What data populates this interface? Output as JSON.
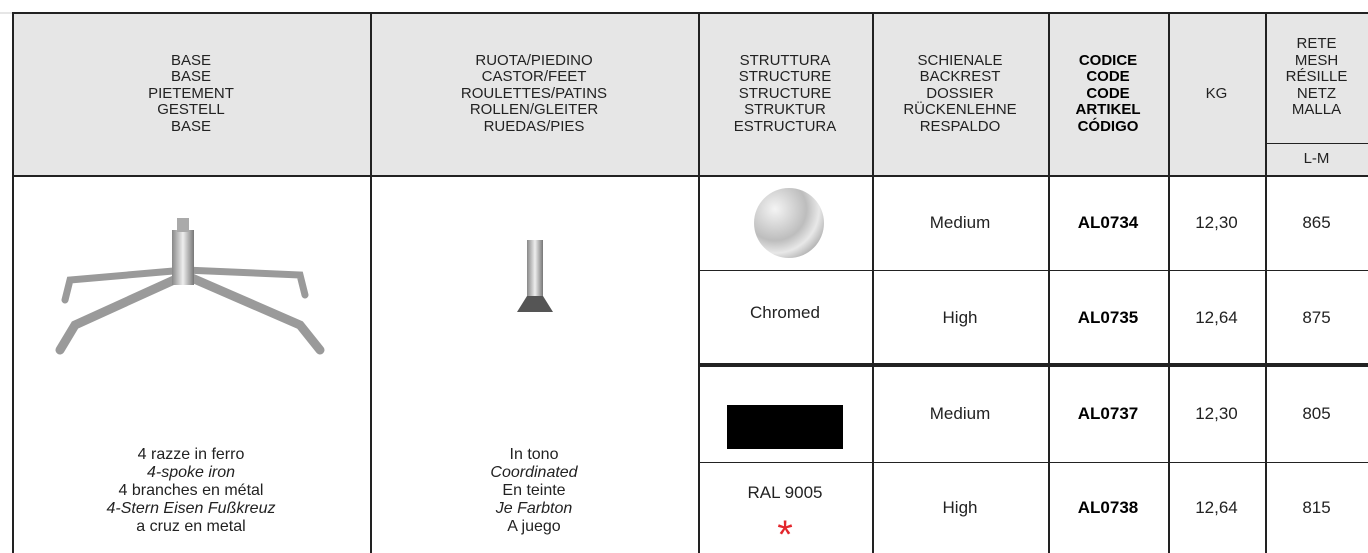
{
  "header": {
    "columns": [
      {
        "lines": [
          "BASE",
          "BASE",
          "PIETEMENT",
          "GESTELL",
          "BASE"
        ]
      },
      {
        "lines": [
          "RUOTA/PIEDINO",
          "CASTOR/FEET",
          "ROULETTES/PATINS",
          "ROLLEN/GLEITER",
          "RUEDAS/PIES"
        ]
      },
      {
        "lines": [
          "STRUTTURA",
          "STRUCTURE",
          "STRUCTURE",
          "STRUKTUR",
          "ESTRUCTURA"
        ]
      },
      {
        "lines": [
          "SCHIENALE",
          "BACKREST",
          "DOSSIER",
          "RÜCKENLEHNE",
          "RESPALDO"
        ]
      },
      {
        "lines": [
          "CODICE",
          "CODE",
          "CODE",
          "ARTIKEL",
          "CÓDIGO"
        ]
      },
      {
        "lines": [
          "KG"
        ]
      },
      {
        "lines": [
          "RETE",
          "MESH",
          "RÉSILLE",
          "NETZ",
          "MALLA"
        ]
      }
    ],
    "mesh_sub": "L-M"
  },
  "base_description": {
    "lines": [
      "4 razze in ferro",
      "4-spoke iron",
      "4 branches en métal",
      "4-Stern Eisen Fußkreuz",
      "a cruz en metal"
    ]
  },
  "castor_description": {
    "lines": [
      "In tono",
      "Coordinated",
      "En teinte",
      "Je Farbton",
      "A juego"
    ]
  },
  "finishes": [
    {
      "name": "Chromed",
      "rows": [
        {
          "backrest": "Medium",
          "code": "AL0734",
          "kg": "12,30",
          "mesh": "865"
        },
        {
          "backrest": "High",
          "code": "AL0735",
          "kg": "12,64",
          "mesh": "875"
        }
      ]
    },
    {
      "name": "RAL 9005",
      "mark": "*",
      "rows": [
        {
          "backrest": "Medium",
          "code": "AL0737",
          "kg": "12,30",
          "mesh": "805"
        },
        {
          "backrest": "High",
          "code": "AL0738",
          "kg": "12,64",
          "mesh": "815"
        }
      ]
    }
  ]
}
